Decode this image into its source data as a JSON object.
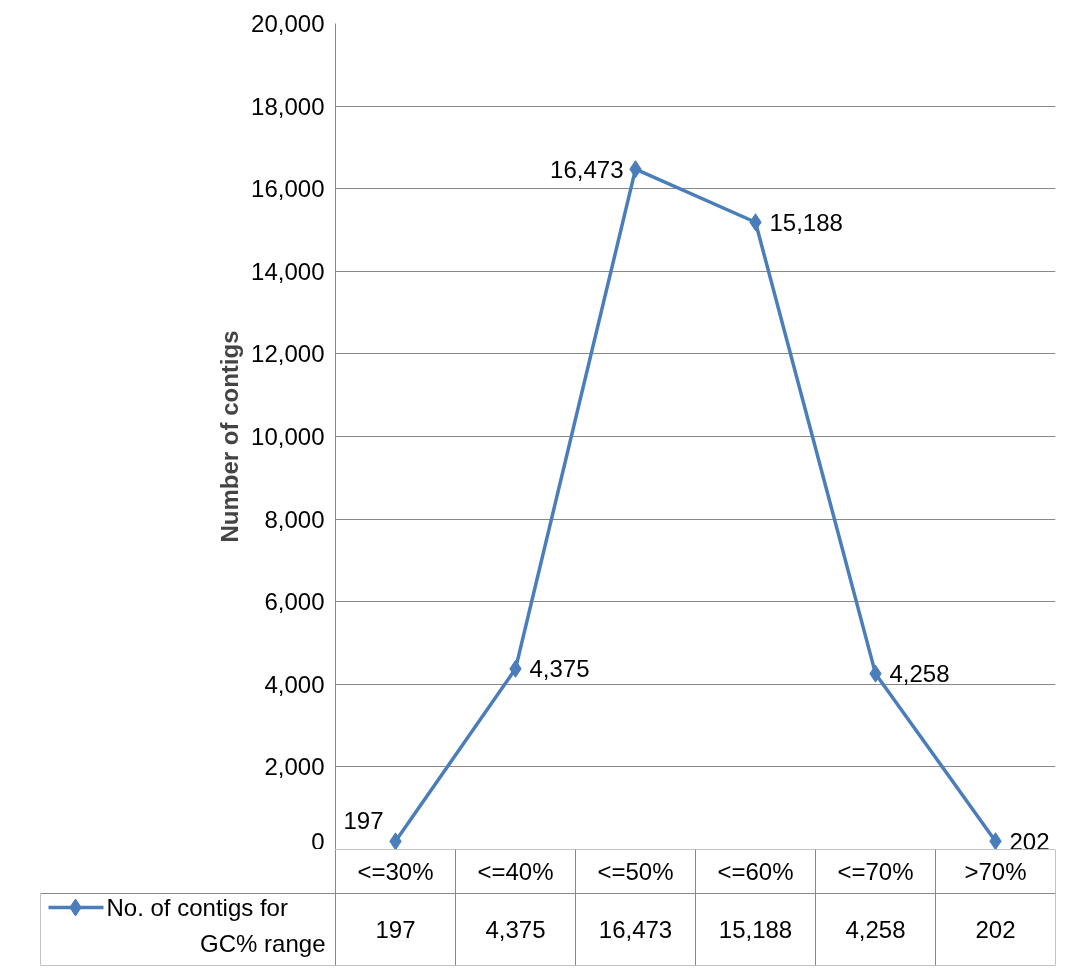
{
  "chart_data": {
    "type": "line",
    "ylabel": "Number of contigs",
    "categories": [
      "<=30%",
      "<=40%",
      "<=50%",
      "<=60%",
      "<=70%",
      ">70%"
    ],
    "series": [
      {
        "name": "No. of contigs for GC% range",
        "color": "#4a7ebb",
        "values": [
          197,
          4375,
          16473,
          15188,
          4258,
          202
        ],
        "value_labels": [
          "197",
          "4,375",
          "16,473",
          "15,188",
          "4,258",
          "202"
        ]
      }
    ],
    "ylim": [
      0,
      20000
    ],
    "yticks": [
      {
        "value": 0,
        "label": "0"
      },
      {
        "value": 2000,
        "label": "2,000"
      },
      {
        "value": 4000,
        "label": "4,000"
      },
      {
        "value": 6000,
        "label": "6,000"
      },
      {
        "value": 8000,
        "label": "8,000"
      },
      {
        "value": 10000,
        "label": "10,000"
      },
      {
        "value": 12000,
        "label": "12,000"
      },
      {
        "value": 14000,
        "label": "14,000"
      },
      {
        "value": 16000,
        "label": "16,000"
      },
      {
        "value": 18000,
        "label": "18,000"
      },
      {
        "value": 20000,
        "label": "20,000"
      }
    ],
    "grid": "y",
    "legend": "bottom",
    "marker": "diamond",
    "line_style": "solid"
  }
}
